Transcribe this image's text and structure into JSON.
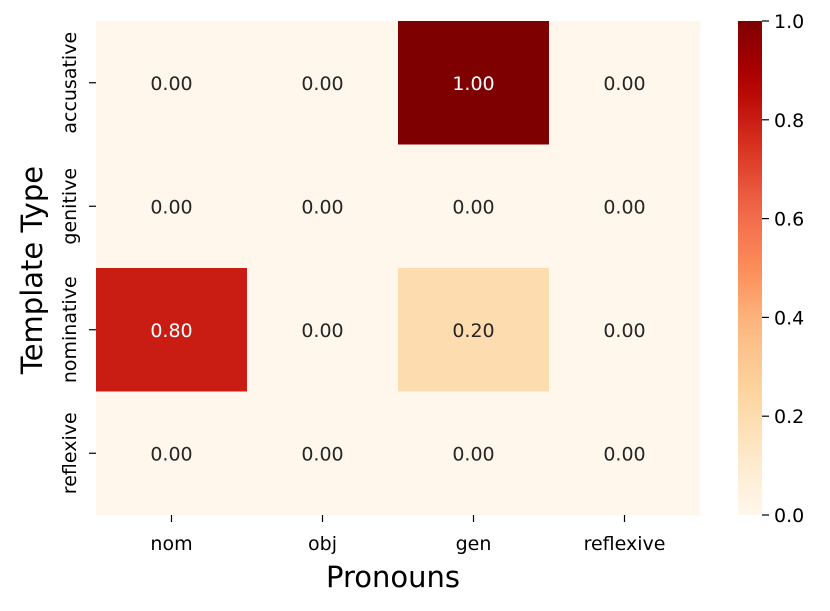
{
  "chart_data": {
    "type": "heatmap",
    "title": "",
    "xlabel": "Pronouns",
    "ylabel": "Template Type",
    "x_categories": [
      "nom",
      "obj",
      "gen",
      "reflexive"
    ],
    "y_categories": [
      "accusative",
      "genitive",
      "nominative",
      "reflexive"
    ],
    "values": [
      [
        0.0,
        0.0,
        1.0,
        0.0
      ],
      [
        0.0,
        0.0,
        0.0,
        0.0
      ],
      [
        0.8,
        0.0,
        0.2,
        0.0
      ],
      [
        0.0,
        0.0,
        0.0,
        0.0
      ]
    ],
    "cell_labels": [
      [
        "0.00",
        "0.00",
        "1.00",
        "0.00"
      ],
      [
        "0.00",
        "0.00",
        "0.00",
        "0.00"
      ],
      [
        "0.80",
        "0.00",
        "0.20",
        "0.00"
      ],
      [
        "0.00",
        "0.00",
        "0.00",
        "0.00"
      ]
    ],
    "colormap": "OrRd",
    "colorbar": {
      "range": [
        0.0,
        1.0
      ],
      "ticks": [
        0.0,
        0.2,
        0.4,
        0.6,
        0.8,
        1.0
      ],
      "tick_labels": [
        "0.0",
        "0.2",
        "0.4",
        "0.6",
        "0.8",
        "1.0"
      ],
      "placement": "right"
    },
    "grid": false,
    "legend": "none"
  }
}
